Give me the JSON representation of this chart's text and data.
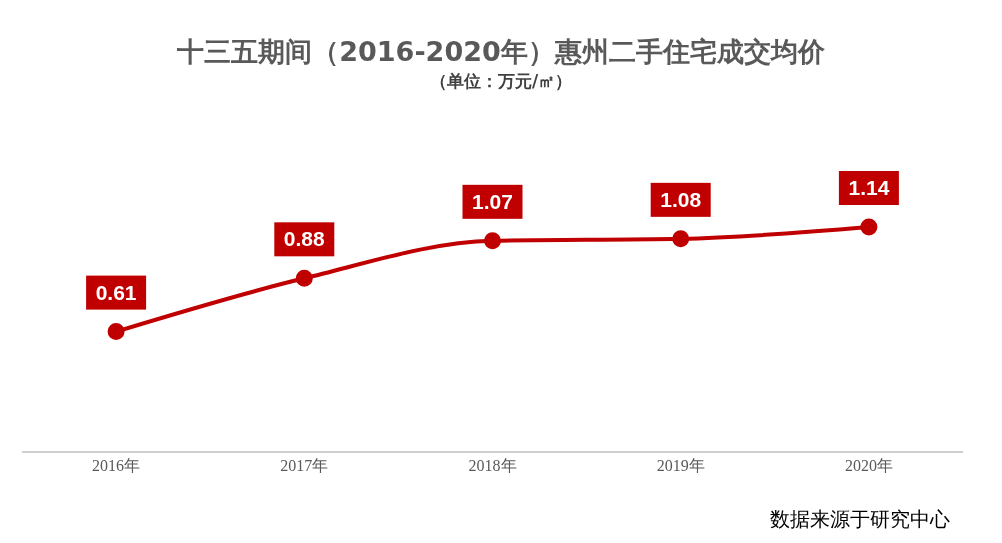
{
  "chart_data": {
    "type": "line",
    "title": "十三五期间（2016-2020年）惠州二手住宅成交均价",
    "subtitle": "（单位：万元/㎡）",
    "categories": [
      "2016年",
      "2017年",
      "2018年",
      "2019年",
      "2020年"
    ],
    "series": [
      {
        "color": "#c00000",
        "values": [
          0.61,
          0.88,
          1.07,
          1.08,
          1.14
        ]
      }
    ],
    "data_labels": true,
    "marker": "circle",
    "grid": false,
    "legend": false,
    "tick_labels": "x",
    "annotations": [
      "数据来源于研究中心"
    ]
  }
}
